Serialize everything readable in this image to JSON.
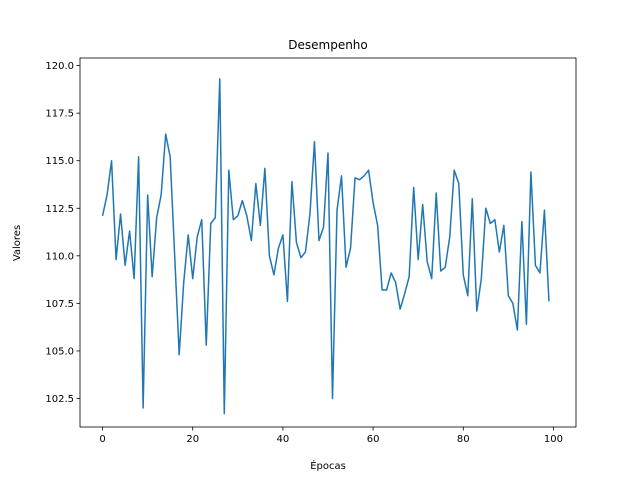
{
  "chart_data": {
    "type": "line",
    "title": "Desempenho",
    "xlabel": "Épocas",
    "ylabel": "Valores",
    "xlim": [
      -5,
      105
    ],
    "ylim": [
      101.0,
      120.4
    ],
    "xticks": [
      0,
      20,
      40,
      60,
      80,
      100
    ],
    "xtick_labels": [
      "0",
      "20",
      "40",
      "60",
      "80",
      "100"
    ],
    "yticks": [
      102.5,
      105.0,
      107.5,
      110.0,
      112.5,
      115.0,
      117.5,
      120.0
    ],
    "ytick_labels": [
      "102.5",
      "105.0",
      "107.5",
      "110.0",
      "112.5",
      "115.0",
      "117.5",
      "120.0"
    ],
    "grid": false,
    "legend": "none",
    "line_color": "#1f77b4",
    "x": [
      0,
      1,
      2,
      3,
      4,
      5,
      6,
      7,
      8,
      9,
      10,
      11,
      12,
      13,
      14,
      15,
      16,
      17,
      18,
      19,
      20,
      21,
      22,
      23,
      24,
      25,
      26,
      27,
      28,
      29,
      30,
      31,
      32,
      33,
      34,
      35,
      36,
      37,
      38,
      39,
      40,
      41,
      42,
      43,
      44,
      45,
      46,
      47,
      48,
      49,
      50,
      51,
      52,
      53,
      54,
      55,
      56,
      57,
      58,
      59,
      60,
      61,
      62,
      63,
      64,
      65,
      66,
      67,
      68,
      69,
      70,
      71,
      72,
      73,
      74,
      75,
      76,
      77,
      78,
      79,
      80,
      81,
      82,
      83,
      84,
      85,
      86,
      87,
      88,
      89,
      90,
      91,
      92,
      93,
      94,
      95,
      96,
      97,
      98,
      99
    ],
    "y": [
      112.1,
      113.2,
      115.0,
      109.8,
      112.2,
      109.5,
      111.3,
      108.8,
      115.2,
      102.0,
      113.2,
      108.9,
      112.0,
      113.2,
      116.4,
      115.2,
      110.0,
      104.8,
      108.6,
      111.1,
      108.8,
      111.0,
      111.9,
      105.3,
      111.7,
      112.0,
      119.3,
      101.7,
      114.5,
      111.9,
      112.1,
      112.9,
      112.1,
      110.8,
      113.8,
      111.6,
      114.6,
      110.0,
      109.0,
      110.4,
      111.1,
      107.6,
      113.9,
      110.7,
      109.9,
      110.2,
      112.2,
      116.0,
      110.8,
      111.5,
      115.4,
      102.5,
      112.4,
      114.2,
      109.4,
      110.4,
      114.1,
      114.0,
      114.2,
      114.5,
      112.8,
      111.6,
      108.2,
      108.2,
      109.1,
      108.6,
      107.2,
      108.0,
      108.9,
      113.6,
      109.8,
      112.7,
      109.7,
      108.8,
      113.3,
      109.2,
      109.4,
      111.0,
      114.5,
      113.8,
      109.0,
      107.9,
      113.0,
      107.1,
      108.8,
      112.5,
      111.7,
      111.9,
      110.2,
      111.6,
      107.9,
      107.5,
      106.1,
      111.8,
      106.4,
      114.4,
      109.5,
      109.1,
      112.4,
      107.6
    ]
  }
}
